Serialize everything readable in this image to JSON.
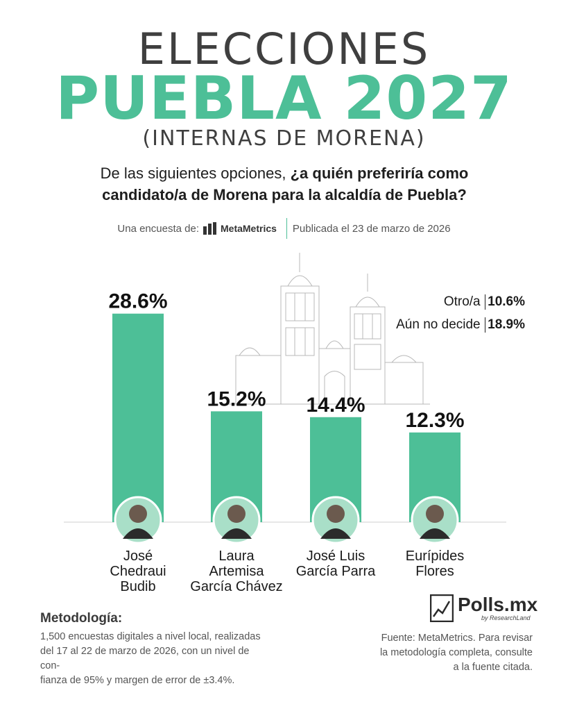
{
  "header": {
    "title_top": "ELECCIONES",
    "title_main": "PUEBLA 2027",
    "title_sub": "(INTERNAS DE MORENA)",
    "question_plain": "De las siguientes opciones, ",
    "question_bold_1": "¿a quién preferiría como",
    "question_bold_2": "candidato/a de Morena para la alcaldía de Puebla?"
  },
  "byline": {
    "prefix": "Una encuesta de:",
    "brand": "MetaMetrics",
    "published": "Publicada el 23 de marzo de 2026"
  },
  "side_stats": [
    {
      "label": "Otro/a",
      "value": "10.6%"
    },
    {
      "label": "Aún no decide",
      "value": "18.9%"
    }
  ],
  "chart_data": {
    "type": "bar",
    "categories": [
      "José Chedraui Budib",
      "Laura Artemisa García Chávez",
      "José Luis García Parra",
      "Eurípides Flores"
    ],
    "category_lines": [
      [
        "José",
        "Chedraui",
        "Budib"
      ],
      [
        "Laura",
        "Artemisa",
        "García Chávez"
      ],
      [
        "José Luis",
        "García Parra"
      ],
      [
        "Eurípides",
        "Flores"
      ]
    ],
    "values": [
      28.6,
      15.2,
      14.4,
      12.3
    ],
    "value_labels": [
      "28.6%",
      "15.2%",
      "14.4%",
      "12.3%"
    ],
    "ylim": [
      0,
      30
    ],
    "bar_color": "#4dbf97",
    "title": "",
    "xlabel": "",
    "ylabel": ""
  },
  "methodology": {
    "title": "Metodología:",
    "lines": [
      "1,500 encuestas digitales a nivel local, realizadas",
      "del 17 al 22 de marzo de 2026, con un nivel de con-",
      "fianza de 95% y margen de error de ±3.4%."
    ]
  },
  "source": {
    "logo_text": "Polls.mx",
    "logo_sub": "by ResearchLand",
    "lines": [
      "Fuente:  MetaMetrics. Para revisar",
      "la metodología completa, consulte",
      "a la fuente citada."
    ]
  },
  "colors": {
    "accent": "#4dbf97",
    "text": "#1a1a1a",
    "muted": "#555555"
  },
  "icons": {
    "byline_logo": "metametrics-logo-icon",
    "candidate_photo": "person-avatar-icon",
    "polls_logo": "polls-chart-icon"
  }
}
